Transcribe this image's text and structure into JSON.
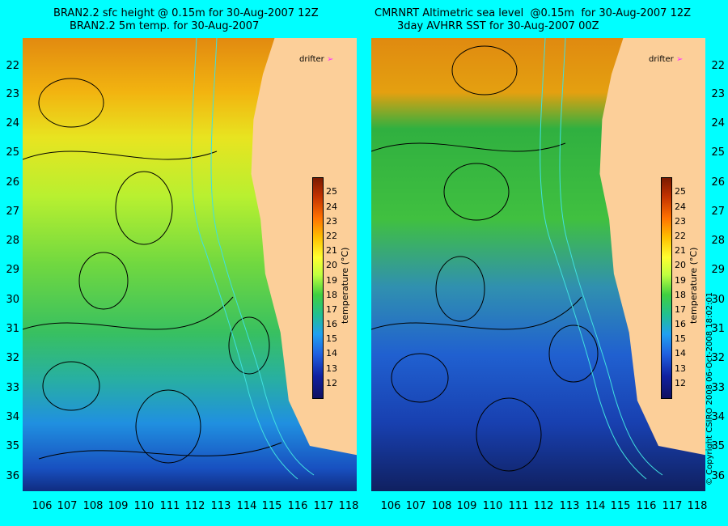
{
  "left_panel": {
    "title_line1": "BRAN2.2 sfc height @ 0.15m for 30-Aug-2007 12Z",
    "title_line2": "BRAN2.2 5m temp. for 30-Aug-2007"
  },
  "right_panel": {
    "title_line1": "CMRNRT Altimetric sea level  @0.15m  for 30-Aug-2007 12Z",
    "title_line2": "3day AVHRR SST for 30-Aug-2007 00Z"
  },
  "y_ticks": [
    "22",
    "23",
    "24",
    "25",
    "26",
    "27",
    "28",
    "29",
    "30",
    "31",
    "32",
    "33",
    "34",
    "35",
    "36"
  ],
  "x_ticks": [
    "106",
    "107",
    "108",
    "109",
    "110",
    "111",
    "112",
    "113",
    "114",
    "115",
    "116",
    "117",
    "118"
  ],
  "colorbar": {
    "label": "temperature (°C)",
    "ticks": [
      "25",
      "24",
      "23",
      "22",
      "21",
      "20",
      "19",
      "18",
      "17",
      "16",
      "15",
      "14",
      "13",
      "12"
    ]
  },
  "drifter_label": "drifter",
  "copyright": "© Copyright CSIRO 2008    06-Oct-2008 18:02:01",
  "colors": {
    "background": "#00ffff",
    "land": "#fccf99",
    "drifter": "#ff33ff"
  }
}
